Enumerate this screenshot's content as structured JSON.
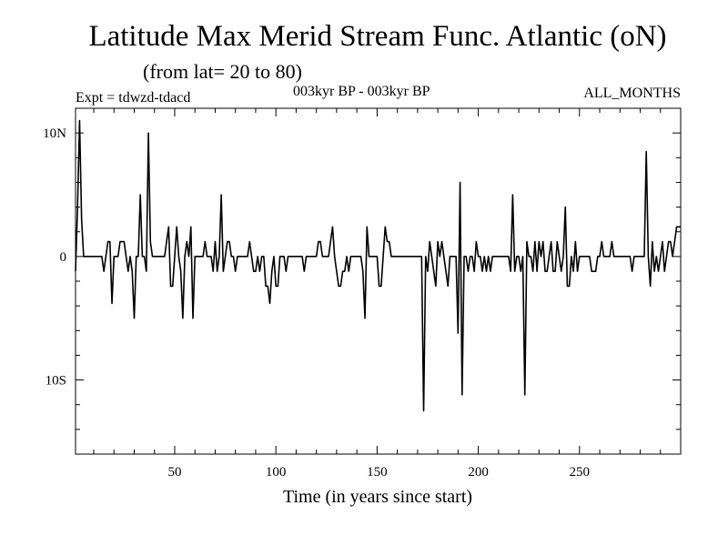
{
  "header": {
    "title": "Latitude Max Merid Stream Func. Atlantic (oN)",
    "subtitle": "(from lat= 20 to 80)",
    "expt": "Expt = tdwzd-tdacd",
    "period": "003kyr BP - 003kyr BP",
    "months": "ALL_MONTHS"
  },
  "chart_data": {
    "type": "line",
    "title": "Latitude Max Merid Stream Func. Atlantic (oN)",
    "xlabel": "Time (in years since start)",
    "ylabel": "",
    "xlim": [
      1,
      300
    ],
    "ylim": [
      -16,
      12
    ],
    "x_ticks": [
      50,
      100,
      150,
      200,
      250
    ],
    "x_tick_labels": [
      "50",
      "100",
      "150",
      "200",
      "250"
    ],
    "y_ticks": [
      -10,
      0,
      10
    ],
    "y_tick_labels": [
      "10S",
      "0",
      "10N"
    ],
    "grid": false,
    "series": [
      {
        "name": "",
        "color": "#000000",
        "points": [
          [
            1,
            -1.2
          ],
          [
            2,
            4
          ],
          [
            3,
            11
          ],
          [
            4,
            3
          ],
          [
            5,
            0
          ],
          [
            6,
            0
          ],
          [
            7,
            0
          ],
          [
            8,
            0
          ],
          [
            9,
            0
          ],
          [
            10,
            0
          ],
          [
            11,
            0
          ],
          [
            12,
            0
          ],
          [
            13,
            0
          ],
          [
            14,
            0
          ],
          [
            15,
            -1.2
          ],
          [
            16,
            0
          ],
          [
            17,
            1.2
          ],
          [
            18,
            1.2
          ],
          [
            19,
            -3.8
          ],
          [
            20,
            0
          ],
          [
            21,
            0
          ],
          [
            22,
            0
          ],
          [
            23,
            1.2
          ],
          [
            24,
            1.2
          ],
          [
            25,
            1.2
          ],
          [
            26,
            0
          ],
          [
            27,
            -1.2
          ],
          [
            28,
            0
          ],
          [
            29,
            -1.2
          ],
          [
            30,
            -5
          ],
          [
            31,
            0
          ],
          [
            32,
            0
          ],
          [
            33,
            5
          ],
          [
            34,
            0
          ],
          [
            35,
            0
          ],
          [
            36,
            -1.2
          ],
          [
            37,
            10
          ],
          [
            38,
            1.2
          ],
          [
            39,
            0
          ],
          [
            40,
            0
          ],
          [
            41,
            0
          ],
          [
            42,
            0
          ],
          [
            43,
            0
          ],
          [
            44,
            0
          ],
          [
            45,
            0
          ],
          [
            46,
            1.2
          ],
          [
            47,
            2.4
          ],
          [
            48,
            -2.4
          ],
          [
            49,
            -2.4
          ],
          [
            50,
            0
          ],
          [
            51,
            2.4
          ],
          [
            52,
            0
          ],
          [
            53,
            -1.2
          ],
          [
            54,
            -5
          ],
          [
            55,
            0
          ],
          [
            56,
            1.2
          ],
          [
            57,
            0
          ],
          [
            58,
            2.4
          ],
          [
            59,
            -5
          ],
          [
            60,
            0
          ],
          [
            61,
            0
          ],
          [
            62,
            0
          ],
          [
            63,
            0
          ],
          [
            64,
            0
          ],
          [
            65,
            1.2
          ],
          [
            66,
            0
          ],
          [
            67,
            0
          ],
          [
            68,
            0
          ],
          [
            69,
            -1.2
          ],
          [
            70,
            1.2
          ],
          [
            71,
            -1.2
          ],
          [
            72,
            0
          ],
          [
            73,
            5
          ],
          [
            74,
            -1.2
          ],
          [
            75,
            0
          ],
          [
            76,
            1.2
          ],
          [
            77,
            1.2
          ],
          [
            78,
            0
          ],
          [
            79,
            0
          ],
          [
            80,
            -1.2
          ],
          [
            81,
            0
          ],
          [
            82,
            0
          ],
          [
            83,
            0
          ],
          [
            84,
            0
          ],
          [
            85,
            0
          ],
          [
            86,
            0
          ],
          [
            87,
            1.2
          ],
          [
            88,
            0
          ],
          [
            89,
            -1.2
          ],
          [
            90,
            -1.2
          ],
          [
            91,
            0
          ],
          [
            92,
            -1.2
          ],
          [
            93,
            0
          ],
          [
            94,
            0
          ],
          [
            95,
            -2.4
          ],
          [
            96,
            -2.4
          ],
          [
            97,
            -3.8
          ],
          [
            98,
            -1.2
          ],
          [
            99,
            0
          ],
          [
            100,
            -2.4
          ],
          [
            101,
            -2.4
          ],
          [
            102,
            0
          ],
          [
            103,
            0
          ],
          [
            104,
            0
          ],
          [
            105,
            -1.2
          ],
          [
            106,
            0
          ],
          [
            107,
            0
          ],
          [
            108,
            0
          ],
          [
            109,
            0
          ],
          [
            110,
            0
          ],
          [
            111,
            0
          ],
          [
            112,
            0
          ],
          [
            113,
            0
          ],
          [
            114,
            -1.2
          ],
          [
            115,
            0
          ],
          [
            116,
            0
          ],
          [
            117,
            0
          ],
          [
            118,
            0
          ],
          [
            119,
            0
          ],
          [
            120,
            0
          ],
          [
            121,
            1.2
          ],
          [
            122,
            1.2
          ],
          [
            123,
            0
          ],
          [
            124,
            0
          ],
          [
            125,
            0
          ],
          [
            126,
            0
          ],
          [
            127,
            1.2
          ],
          [
            128,
            2.4
          ],
          [
            129,
            0
          ],
          [
            130,
            -1.2
          ],
          [
            131,
            -2.4
          ],
          [
            132,
            -2.4
          ],
          [
            133,
            -1.2
          ],
          [
            134,
            -1.2
          ],
          [
            135,
            0
          ],
          [
            136,
            -1.2
          ],
          [
            137,
            0
          ],
          [
            138,
            0
          ],
          [
            139,
            0
          ],
          [
            140,
            0
          ],
          [
            141,
            0
          ],
          [
            142,
            0
          ],
          [
            143,
            -1.2
          ],
          [
            144,
            -5
          ],
          [
            145,
            2.4
          ],
          [
            146,
            0
          ],
          [
            147,
            0
          ],
          [
            148,
            0
          ],
          [
            149,
            0
          ],
          [
            150,
            0
          ],
          [
            151,
            -2.4
          ],
          [
            152,
            -2.4
          ],
          [
            153,
            0
          ],
          [
            154,
            2.4
          ],
          [
            155,
            1.2
          ],
          [
            156,
            1.2
          ],
          [
            157,
            0
          ],
          [
            158,
            0
          ],
          [
            159,
            0
          ],
          [
            160,
            0
          ],
          [
            161,
            0
          ],
          [
            162,
            0
          ],
          [
            163,
            0
          ],
          [
            164,
            0
          ],
          [
            165,
            0
          ],
          [
            166,
            0
          ],
          [
            167,
            0
          ],
          [
            168,
            0
          ],
          [
            169,
            0
          ],
          [
            170,
            0
          ],
          [
            171,
            0
          ],
          [
            172,
            0
          ],
          [
            173,
            -12.5
          ],
          [
            174,
            0
          ],
          [
            175,
            -1.2
          ],
          [
            176,
            1.2
          ],
          [
            177,
            0
          ],
          [
            178,
            -1.2
          ],
          [
            179,
            -2.4
          ],
          [
            180,
            1.2
          ],
          [
            181,
            0
          ],
          [
            182,
            1.2
          ],
          [
            183,
            0
          ],
          [
            184,
            -1.2
          ],
          [
            185,
            -2.4
          ],
          [
            186,
            0
          ],
          [
            187,
            0
          ],
          [
            188,
            0
          ],
          [
            189,
            0
          ],
          [
            190,
            -6.2
          ],
          [
            191,
            6
          ],
          [
            192,
            -11.2
          ],
          [
            193,
            0
          ],
          [
            194,
            0
          ],
          [
            195,
            -1.2
          ],
          [
            196,
            0
          ],
          [
            197,
            0
          ],
          [
            198,
            -1.2
          ],
          [
            199,
            1.2
          ],
          [
            200,
            0
          ],
          [
            201,
            0
          ],
          [
            202,
            -1.2
          ],
          [
            203,
            0
          ],
          [
            204,
            -1.2
          ],
          [
            205,
            0
          ],
          [
            206,
            -1.2
          ],
          [
            207,
            0
          ],
          [
            208,
            0
          ],
          [
            209,
            0
          ],
          [
            210,
            0
          ],
          [
            211,
            0
          ],
          [
            212,
            0
          ],
          [
            213,
            0
          ],
          [
            214,
            0
          ],
          [
            215,
            0
          ],
          [
            216,
            -1.2
          ],
          [
            217,
            5
          ],
          [
            218,
            -1.2
          ],
          [
            219,
            0
          ],
          [
            220,
            0
          ],
          [
            221,
            -1.2
          ],
          [
            222,
            0
          ],
          [
            223,
            -11.2
          ],
          [
            224,
            1.2
          ],
          [
            225,
            0
          ],
          [
            226,
            0
          ],
          [
            227,
            -1.2
          ],
          [
            228,
            1.2
          ],
          [
            229,
            -1.2
          ],
          [
            230,
            1.2
          ],
          [
            231,
            0
          ],
          [
            232,
            1.2
          ],
          [
            233,
            -1.2
          ],
          [
            234,
            -1.2
          ],
          [
            235,
            0
          ],
          [
            236,
            1.2
          ],
          [
            237,
            -1.2
          ],
          [
            238,
            -1.2
          ],
          [
            239,
            1.2
          ],
          [
            240,
            0
          ],
          [
            241,
            -1.2
          ],
          [
            242,
            0
          ],
          [
            243,
            4
          ],
          [
            244,
            -2.4
          ],
          [
            245,
            -2.4
          ],
          [
            246,
            0
          ],
          [
            247,
            -1.2
          ],
          [
            248,
            1.2
          ],
          [
            249,
            -1.2
          ],
          [
            250,
            0
          ],
          [
            251,
            0
          ],
          [
            252,
            0
          ],
          [
            253,
            0
          ],
          [
            254,
            0
          ],
          [
            255,
            0
          ],
          [
            256,
            -1.2
          ],
          [
            257,
            -1.2
          ],
          [
            258,
            -1.2
          ],
          [
            259,
            0
          ],
          [
            260,
            0
          ],
          [
            261,
            1.2
          ],
          [
            262,
            0
          ],
          [
            263,
            0
          ],
          [
            264,
            0
          ],
          [
            265,
            0
          ],
          [
            266,
            1.2
          ],
          [
            267,
            0
          ],
          [
            268,
            0
          ],
          [
            269,
            0
          ],
          [
            270,
            0
          ],
          [
            271,
            0
          ],
          [
            272,
            0
          ],
          [
            273,
            0
          ],
          [
            274,
            0
          ],
          [
            275,
            0
          ],
          [
            276,
            -1.2
          ],
          [
            277,
            0
          ],
          [
            278,
            0
          ],
          [
            279,
            0
          ],
          [
            280,
            0
          ],
          [
            281,
            0
          ],
          [
            282,
            0
          ],
          [
            283,
            8.5
          ],
          [
            284,
            0
          ],
          [
            285,
            -2.4
          ],
          [
            286,
            1.2
          ],
          [
            287,
            -1.2
          ],
          [
            288,
            0
          ],
          [
            289,
            -1.2
          ],
          [
            290,
            0
          ],
          [
            291,
            1.2
          ],
          [
            292,
            -1.2
          ],
          [
            293,
            0
          ],
          [
            294,
            1.2
          ],
          [
            295,
            1.2
          ],
          [
            296,
            0
          ],
          [
            297,
            1.2
          ],
          [
            298,
            2.4
          ],
          [
            299,
            2.4
          ],
          [
            300,
            2.4
          ]
        ]
      }
    ]
  }
}
